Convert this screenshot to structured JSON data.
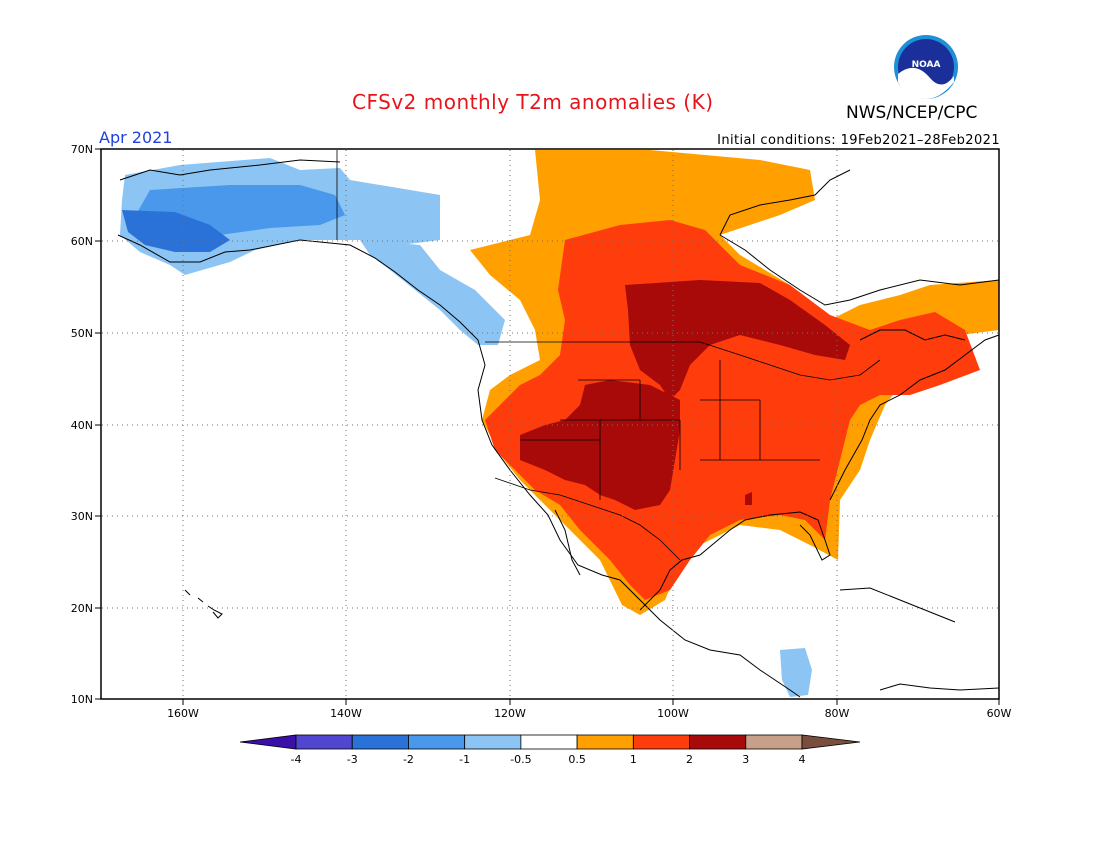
{
  "title": "CFSv2 monthly T2m anomalies (K)",
  "organization": "NWS/NCEP/CPC",
  "logo_text": "NOAA",
  "valid_month": "Apr 2021",
  "initial_conditions": "Initial conditions: 19Feb2021–28Feb2021",
  "map": {
    "lon_ticks": [
      "160W",
      "140W",
      "120W",
      "100W",
      "80W",
      "60W"
    ],
    "lat_ticks": [
      "70N",
      "60N",
      "50N",
      "40N",
      "30N",
      "20N",
      "10N"
    ],
    "lon_range": [
      -170,
      -60
    ],
    "lat_range": [
      10,
      70
    ],
    "gridlines": true
  },
  "colorbar": {
    "labels": [
      "-4",
      "-3",
      "-2",
      "-1",
      "-0.5",
      "0.5",
      "1",
      "2",
      "3",
      "4"
    ],
    "colors": [
      "#3a10a8",
      "#5046d0",
      "#2a72d8",
      "#4a98ec",
      "#8cc4f4",
      "#ffffff",
      "#ffa000",
      "#ff3c0c",
      "#a80a0a",
      "#c8a08a",
      "#7a4e3c"
    ]
  }
}
